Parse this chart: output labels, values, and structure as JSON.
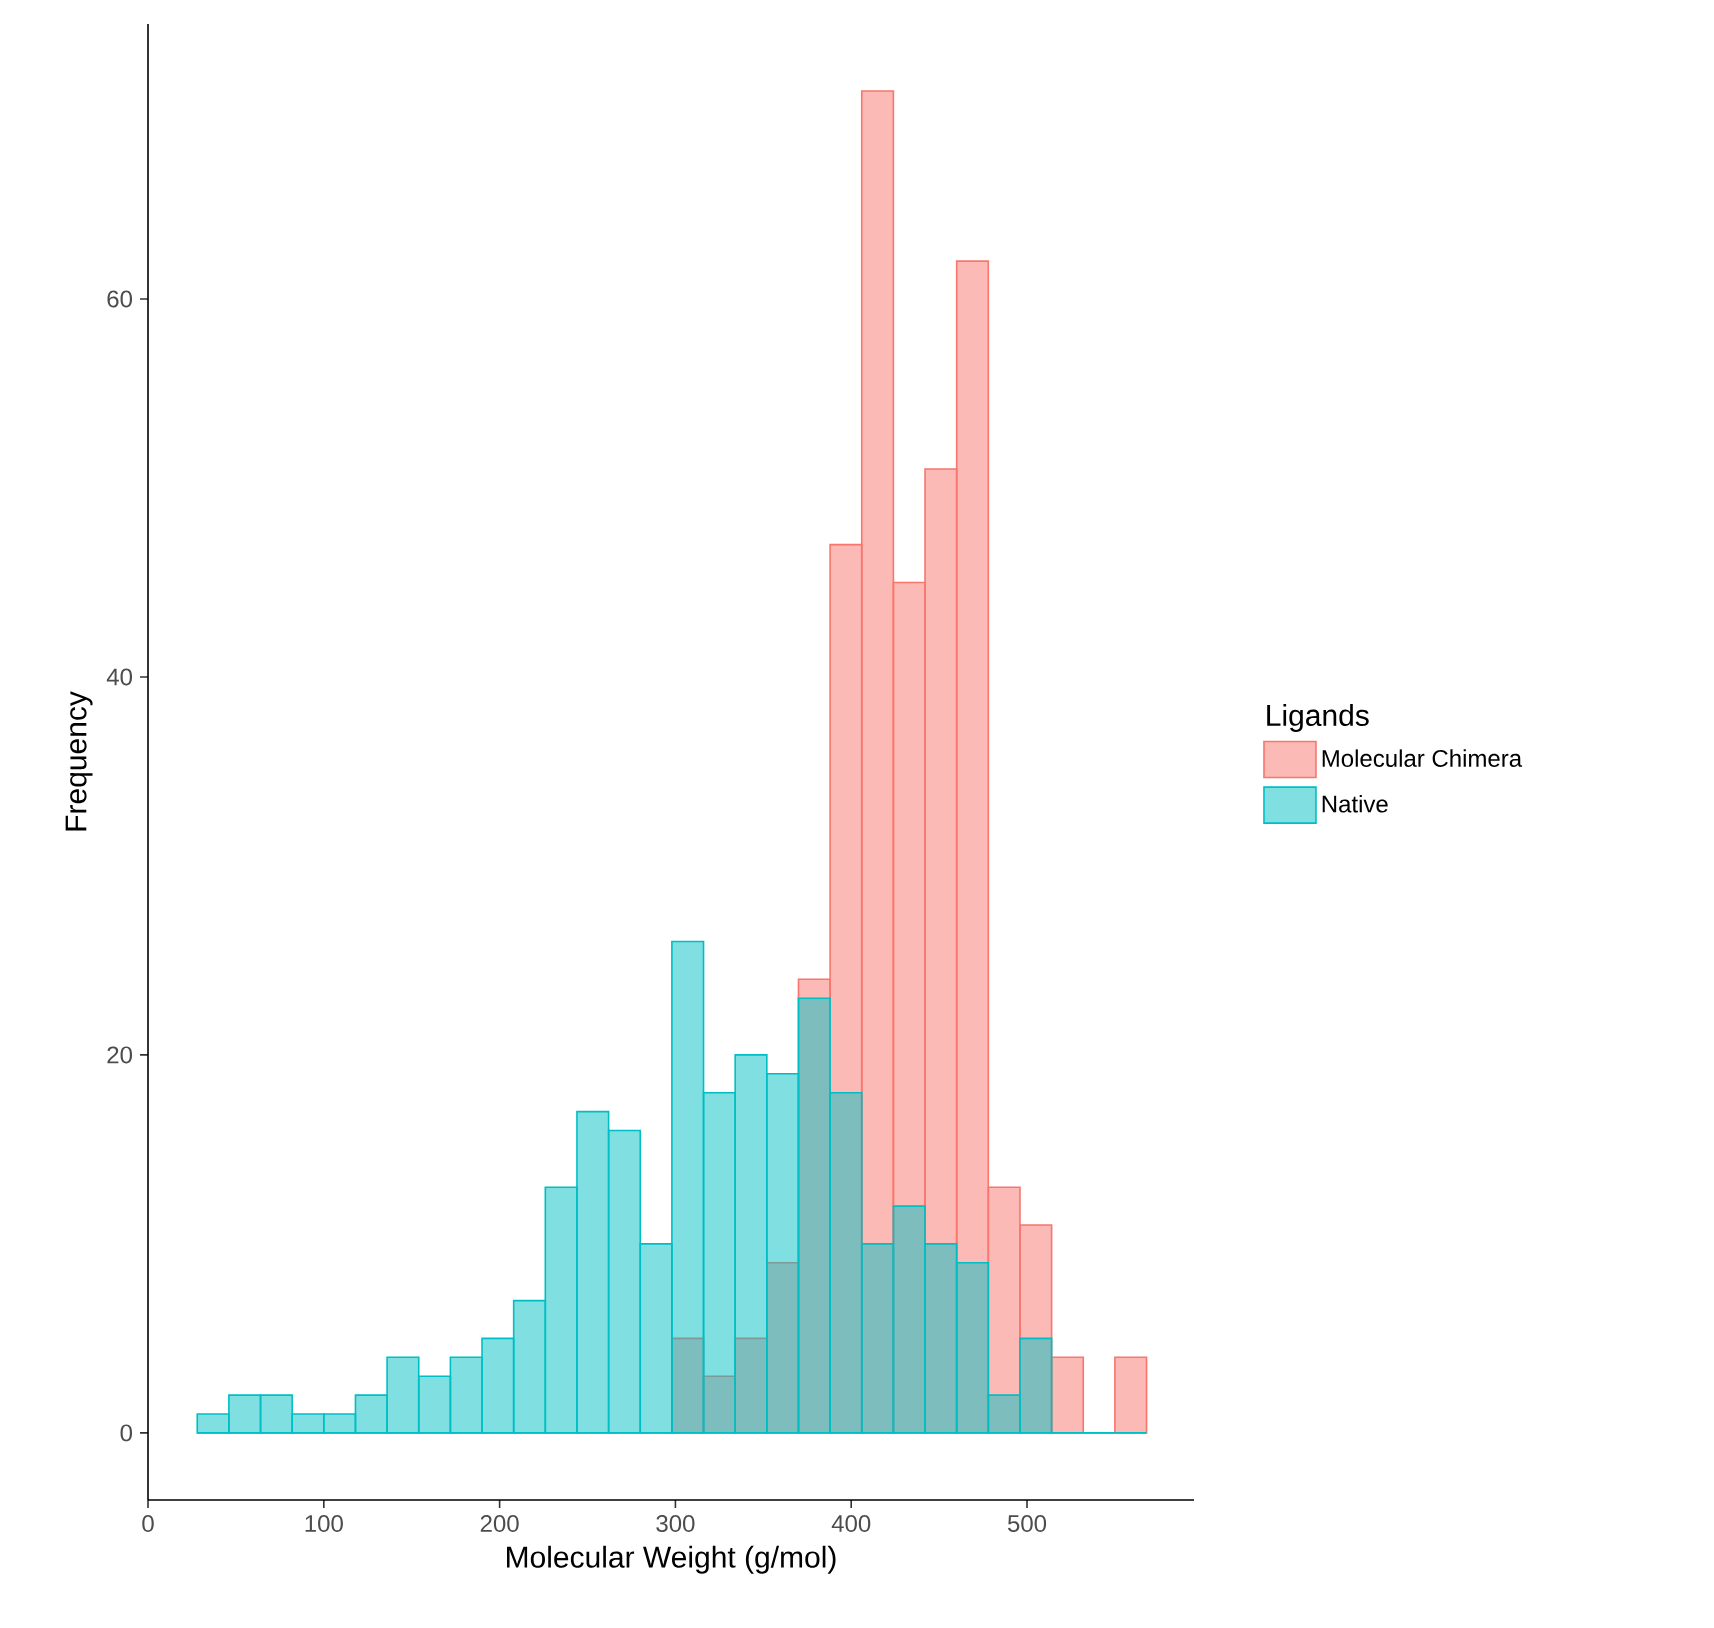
{
  "chart_data": {
    "type": "histogram",
    "xlabel": "Molecular Weight (g/mol)",
    "ylabel": "Frequency",
    "legend_title": "Ligands",
    "legend": "right",
    "bins": [
      28,
      46,
      64,
      82,
      100,
      118,
      136,
      154,
      172,
      190,
      208,
      226,
      244,
      262,
      280,
      298,
      316,
      334,
      352,
      370,
      388,
      406,
      424,
      442,
      460,
      478,
      496,
      514,
      532,
      550,
      568
    ],
    "series": [
      {
        "name": "Molecular Chimera",
        "color": "#f8766d",
        "values": [
          0,
          0,
          0,
          0,
          0,
          0,
          0,
          0,
          0,
          0,
          0,
          0,
          0,
          0,
          0,
          5,
          3,
          5,
          9,
          24,
          47,
          71,
          45,
          51,
          62,
          13,
          11,
          4,
          0,
          4
        ]
      },
      {
        "name": "Native",
        "color": "#00bfc4",
        "values": [
          1,
          2,
          2,
          1,
          1,
          2,
          4,
          3,
          4,
          5,
          7,
          13,
          17,
          16,
          10,
          26,
          18,
          20,
          19,
          23,
          18,
          10,
          12,
          10,
          9,
          2,
          5,
          0,
          0,
          0
        ]
      }
    ],
    "xlim": [
      0,
      595
    ],
    "ylim": [
      -3.55,
      74.55
    ],
    "xticks": [
      0,
      100,
      200,
      300,
      400,
      500
    ],
    "yticks": [
      0,
      20,
      40,
      60
    ]
  }
}
